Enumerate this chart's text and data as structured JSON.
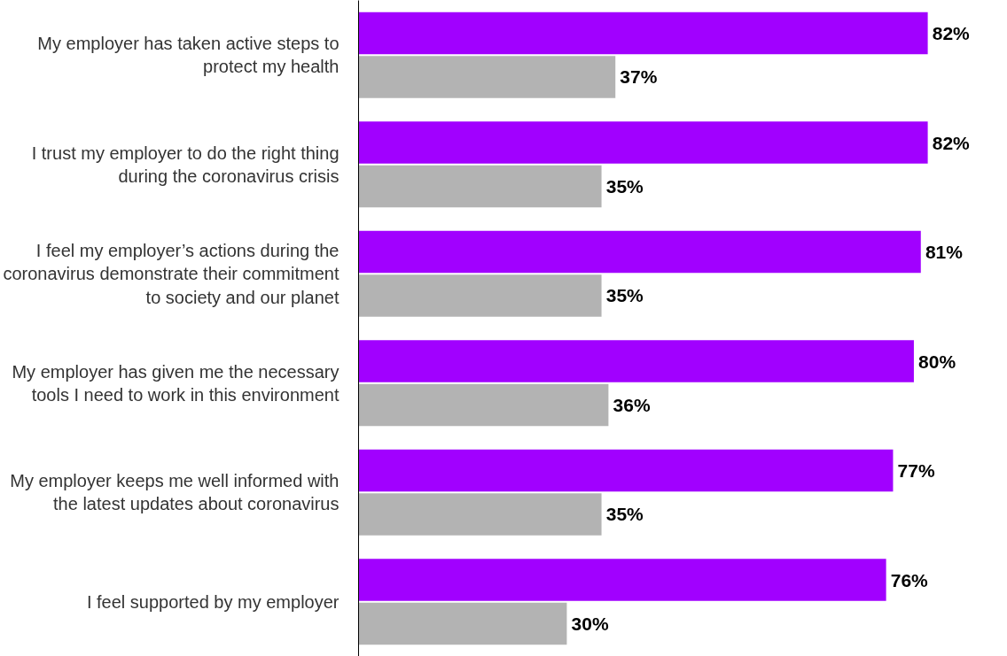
{
  "chart_data": {
    "type": "bar",
    "orientation": "horizontal",
    "categories": [
      "My employer has taken active steps to protect my health",
      "I trust my employer to do the right thing during the coronavirus crisis",
      "I feel my employer’s actions during the coronavirus demonstrate their commitment to society and our planet",
      "My employer has given me the necessary tools I need to work in this environment",
      "My employer keeps me well informed with the latest updates about coronavirus",
      "I feel supported by my employer"
    ],
    "series": [
      {
        "color": "#a100ff",
        "values": [
          82,
          82,
          81,
          80,
          77,
          76
        ],
        "value_labels": [
          "82%",
          "82%",
          "81%",
          "80%",
          "77%",
          "76%"
        ]
      },
      {
        "color": "#b3b3b3",
        "values": [
          37,
          35,
          35,
          36,
          35,
          30
        ],
        "value_labels": [
          "37%",
          "35%",
          "35%",
          "36%",
          "35%",
          "30%"
        ]
      }
    ],
    "tick_labels": "y",
    "grid": false
  }
}
